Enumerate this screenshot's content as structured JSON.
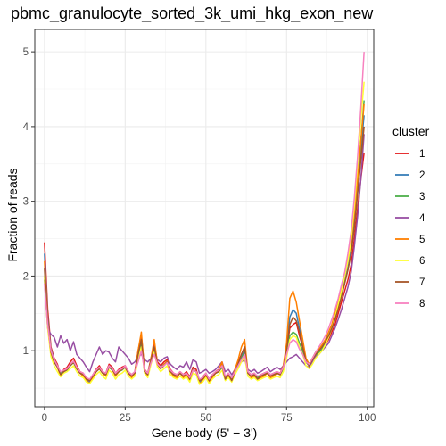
{
  "chart_data": {
    "type": "line",
    "title": "pbmc_granulocyte_sorted_3k_umi_hkg_exon_new",
    "xlabel": "Gene body (5' − 3')",
    "ylabel": "Fraction of reads",
    "xlim": [
      -3,
      102
    ],
    "ylim": [
      0.25,
      5.3
    ],
    "x_ticks": [
      0,
      25,
      50,
      75,
      100
    ],
    "y_ticks": [
      1,
      2,
      3,
      4,
      5
    ],
    "grid": true,
    "legend": {
      "title": "cluster",
      "position": "right"
    },
    "series": [
      {
        "name": "1",
        "color": "#E41A1C",
        "values": [
          2.45,
          1.55,
          1.05,
          0.9,
          0.82,
          0.68,
          0.75,
          0.78,
          0.85,
          0.9,
          0.8,
          0.72,
          0.7,
          0.62,
          0.6,
          0.68,
          0.75,
          0.8,
          0.72,
          0.7,
          0.82,
          0.78,
          0.7,
          0.75,
          0.78,
          0.8,
          0.72,
          0.68,
          0.72,
          1.0,
          1.2,
          0.75,
          0.7,
          0.9,
          1.1,
          0.85,
          0.8,
          0.85,
          0.88,
          0.75,
          0.7,
          0.68,
          0.72,
          0.68,
          0.72,
          0.65,
          0.78,
          0.75,
          0.6,
          0.65,
          0.7,
          0.62,
          0.68,
          0.72,
          0.75,
          0.82,
          0.65,
          0.7,
          0.62,
          0.75,
          0.85,
          0.95,
          1.05,
          0.72,
          0.68,
          0.7,
          0.65,
          0.68,
          0.7,
          0.72,
          0.68,
          0.7,
          0.72,
          0.7,
          0.8,
          1.0,
          1.3,
          1.35,
          1.38,
          1.2,
          1.05,
          0.85,
          0.8,
          0.88,
          0.95,
          0.98,
          1.02,
          1.08,
          1.15,
          1.25,
          1.35,
          1.5,
          1.65,
          1.8,
          1.95,
          2.15,
          2.5,
          2.9,
          3.3,
          3.65
        ]
      },
      {
        "name": "2",
        "color": "#377EB8",
        "values": [
          2.3,
          1.45,
          1.02,
          0.88,
          0.8,
          0.66,
          0.72,
          0.76,
          0.82,
          0.86,
          0.78,
          0.7,
          0.68,
          0.6,
          0.58,
          0.65,
          0.72,
          0.78,
          0.7,
          0.68,
          0.8,
          0.76,
          0.68,
          0.72,
          0.75,
          0.78,
          0.7,
          0.66,
          0.7,
          0.95,
          1.15,
          0.72,
          0.68,
          0.88,
          1.05,
          0.82,
          0.78,
          0.82,
          0.85,
          0.72,
          0.68,
          0.66,
          0.7,
          0.66,
          0.7,
          0.62,
          0.75,
          0.72,
          0.58,
          0.62,
          0.68,
          0.6,
          0.66,
          0.7,
          0.72,
          0.8,
          0.62,
          0.68,
          0.6,
          0.72,
          0.82,
          0.92,
          1.0,
          0.7,
          0.66,
          0.68,
          0.62,
          0.66,
          0.68,
          0.7,
          0.66,
          0.68,
          0.7,
          0.68,
          0.78,
          1.05,
          1.45,
          1.55,
          1.5,
          1.3,
          1.1,
          0.88,
          0.82,
          0.9,
          0.98,
          1.02,
          1.06,
          1.12,
          1.2,
          1.3,
          1.42,
          1.58,
          1.75,
          1.92,
          2.1,
          2.35,
          2.75,
          3.2,
          3.7,
          4.15
        ]
      },
      {
        "name": "3",
        "color": "#4DAF4A",
        "values": [
          1.95,
          1.35,
          0.98,
          0.85,
          0.78,
          0.7,
          0.72,
          0.74,
          0.8,
          0.84,
          0.76,
          0.7,
          0.68,
          0.62,
          0.6,
          0.66,
          0.72,
          0.76,
          0.7,
          0.68,
          0.78,
          0.74,
          0.68,
          0.72,
          0.74,
          0.78,
          0.7,
          0.66,
          0.7,
          0.9,
          1.1,
          0.72,
          0.68,
          0.86,
          1.02,
          0.82,
          0.76,
          0.8,
          0.84,
          0.72,
          0.68,
          0.66,
          0.7,
          0.66,
          0.68,
          0.62,
          0.74,
          0.72,
          0.6,
          0.62,
          0.68,
          0.6,
          0.66,
          0.7,
          0.72,
          0.78,
          0.64,
          0.68,
          0.62,
          0.72,
          0.8,
          0.9,
          0.98,
          0.7,
          0.66,
          0.68,
          0.64,
          0.66,
          0.68,
          0.7,
          0.66,
          0.68,
          0.7,
          0.68,
          0.76,
          0.95,
          1.2,
          1.25,
          1.22,
          1.1,
          1.0,
          0.85,
          0.8,
          0.86,
          0.94,
          0.98,
          1.02,
          1.1,
          1.18,
          1.3,
          1.45,
          1.62,
          1.8,
          1.98,
          2.2,
          2.45,
          2.85,
          3.3,
          3.8,
          4.35
        ]
      },
      {
        "name": "4",
        "color": "#984EA3",
        "values": [
          1.95,
          1.3,
          1.22,
          1.18,
          1.05,
          1.2,
          1.1,
          1.15,
          1.0,
          1.12,
          0.95,
          0.9,
          0.85,
          0.78,
          0.72,
          0.85,
          0.95,
          1.05,
          0.95,
          1.0,
          0.98,
          0.9,
          0.85,
          1.05,
          1.0,
          0.95,
          0.9,
          0.82,
          0.85,
          0.92,
          0.95,
          0.88,
          0.85,
          0.9,
          0.95,
          0.88,
          0.85,
          0.9,
          0.92,
          0.82,
          0.78,
          0.75,
          0.8,
          0.78,
          0.85,
          0.75,
          0.88,
          0.85,
          0.7,
          0.72,
          0.75,
          0.7,
          0.72,
          0.75,
          0.8,
          0.85,
          0.72,
          0.75,
          0.68,
          0.75,
          0.8,
          0.85,
          0.88,
          0.75,
          0.72,
          0.75,
          0.7,
          0.72,
          0.75,
          0.78,
          0.72,
          0.75,
          0.78,
          0.75,
          0.8,
          0.85,
          0.9,
          0.92,
          0.95,
          0.9,
          0.85,
          0.8,
          0.78,
          0.85,
          0.92,
          0.95,
          1.0,
          1.05,
          1.1,
          1.2,
          1.3,
          1.42,
          1.55,
          1.7,
          1.85,
          2.05,
          2.4,
          2.8,
          3.3,
          3.9
        ]
      },
      {
        "name": "5",
        "color": "#FF7F00",
        "values": [
          2.2,
          1.4,
          1.0,
          0.86,
          0.78,
          0.66,
          0.72,
          0.75,
          0.82,
          0.86,
          0.78,
          0.7,
          0.66,
          0.6,
          0.56,
          0.64,
          0.72,
          0.78,
          0.7,
          0.66,
          0.8,
          0.75,
          0.66,
          0.72,
          0.75,
          0.78,
          0.7,
          0.64,
          0.7,
          1.0,
          1.25,
          0.72,
          0.66,
          0.9,
          1.15,
          0.82,
          0.76,
          0.82,
          0.86,
          0.72,
          0.66,
          0.64,
          0.7,
          0.64,
          0.68,
          0.6,
          0.74,
          0.72,
          0.56,
          0.6,
          0.66,
          0.58,
          0.64,
          0.7,
          0.74,
          0.85,
          0.62,
          0.66,
          0.6,
          0.75,
          0.88,
          1.05,
          1.15,
          0.72,
          0.64,
          0.66,
          0.62,
          0.64,
          0.66,
          0.7,
          0.64,
          0.66,
          0.7,
          0.68,
          0.8,
          1.1,
          1.7,
          1.8,
          1.65,
          1.4,
          1.15,
          0.9,
          0.82,
          0.9,
          0.98,
          1.02,
          1.08,
          1.15,
          1.25,
          1.35,
          1.5,
          1.65,
          1.82,
          2.0,
          2.2,
          2.45,
          2.85,
          3.3,
          3.8,
          4.3
        ]
      },
      {
        "name": "6",
        "color": "#FFFF33",
        "values": [
          2.0,
          1.3,
          0.92,
          0.8,
          0.72,
          0.65,
          0.7,
          0.72,
          0.76,
          0.8,
          0.72,
          0.66,
          0.64,
          0.58,
          0.56,
          0.62,
          0.68,
          0.72,
          0.66,
          0.62,
          0.74,
          0.7,
          0.62,
          0.68,
          0.7,
          0.74,
          0.66,
          0.62,
          0.66,
          0.88,
          1.05,
          0.7,
          0.64,
          0.82,
          0.98,
          0.78,
          0.72,
          0.76,
          0.8,
          0.68,
          0.64,
          0.62,
          0.66,
          0.62,
          0.65,
          0.58,
          0.7,
          0.68,
          0.55,
          0.58,
          0.64,
          0.56,
          0.62,
          0.66,
          0.68,
          0.74,
          0.6,
          0.64,
          0.58,
          0.68,
          0.76,
          0.85,
          0.92,
          0.66,
          0.62,
          0.64,
          0.6,
          0.62,
          0.64,
          0.66,
          0.62,
          0.64,
          0.66,
          0.64,
          0.72,
          0.9,
          1.15,
          1.2,
          1.18,
          1.05,
          0.95,
          0.8,
          0.76,
          0.82,
          0.9,
          0.95,
          1.0,
          1.08,
          1.18,
          1.3,
          1.45,
          1.62,
          1.8,
          2.0,
          2.2,
          2.5,
          2.95,
          3.5,
          4.1,
          4.6
        ]
      },
      {
        "name": "7",
        "color": "#A65628",
        "values": [
          2.1,
          1.38,
          0.98,
          0.85,
          0.78,
          0.68,
          0.72,
          0.75,
          0.8,
          0.85,
          0.76,
          0.7,
          0.68,
          0.62,
          0.6,
          0.66,
          0.72,
          0.76,
          0.7,
          0.68,
          0.78,
          0.75,
          0.68,
          0.72,
          0.75,
          0.78,
          0.7,
          0.66,
          0.7,
          0.95,
          1.15,
          0.72,
          0.68,
          0.88,
          1.05,
          0.82,
          0.76,
          0.8,
          0.85,
          0.72,
          0.68,
          0.66,
          0.7,
          0.66,
          0.7,
          0.62,
          0.75,
          0.72,
          0.6,
          0.62,
          0.68,
          0.6,
          0.66,
          0.7,
          0.72,
          0.8,
          0.62,
          0.68,
          0.6,
          0.72,
          0.82,
          0.95,
          1.05,
          0.7,
          0.66,
          0.68,
          0.62,
          0.66,
          0.68,
          0.7,
          0.66,
          0.68,
          0.7,
          0.68,
          0.78,
          1.0,
          1.35,
          1.45,
          1.4,
          1.25,
          1.05,
          0.86,
          0.8,
          0.88,
          0.95,
          1.0,
          1.05,
          1.12,
          1.2,
          1.3,
          1.42,
          1.56,
          1.72,
          1.9,
          2.08,
          2.3,
          2.65,
          3.1,
          3.55,
          4.0
        ]
      },
      {
        "name": "8",
        "color": "#F781BF",
        "values": [
          1.9,
          1.35,
          1.0,
          0.88,
          0.8,
          0.72,
          0.74,
          0.76,
          0.82,
          0.86,
          0.78,
          0.72,
          0.7,
          0.64,
          0.62,
          0.68,
          0.74,
          0.78,
          0.72,
          0.7,
          0.8,
          0.76,
          0.7,
          0.74,
          0.76,
          0.8,
          0.72,
          0.68,
          0.72,
          0.85,
          1.0,
          0.74,
          0.7,
          0.84,
          0.95,
          0.82,
          0.78,
          0.8,
          0.84,
          0.74,
          0.7,
          0.68,
          0.72,
          0.68,
          0.7,
          0.64,
          0.74,
          0.72,
          0.62,
          0.64,
          0.7,
          0.62,
          0.68,
          0.72,
          0.74,
          0.8,
          0.66,
          0.7,
          0.64,
          0.72,
          0.8,
          0.88,
          0.95,
          0.72,
          0.68,
          0.7,
          0.66,
          0.68,
          0.7,
          0.72,
          0.68,
          0.7,
          0.72,
          0.7,
          0.78,
          0.95,
          1.1,
          1.15,
          1.12,
          1.02,
          0.95,
          0.85,
          0.82,
          0.9,
          0.98,
          1.05,
          1.12,
          1.2,
          1.3,
          1.42,
          1.55,
          1.7,
          1.88,
          2.05,
          2.3,
          2.6,
          3.05,
          3.6,
          4.25,
          5.0
        ]
      }
    ]
  }
}
